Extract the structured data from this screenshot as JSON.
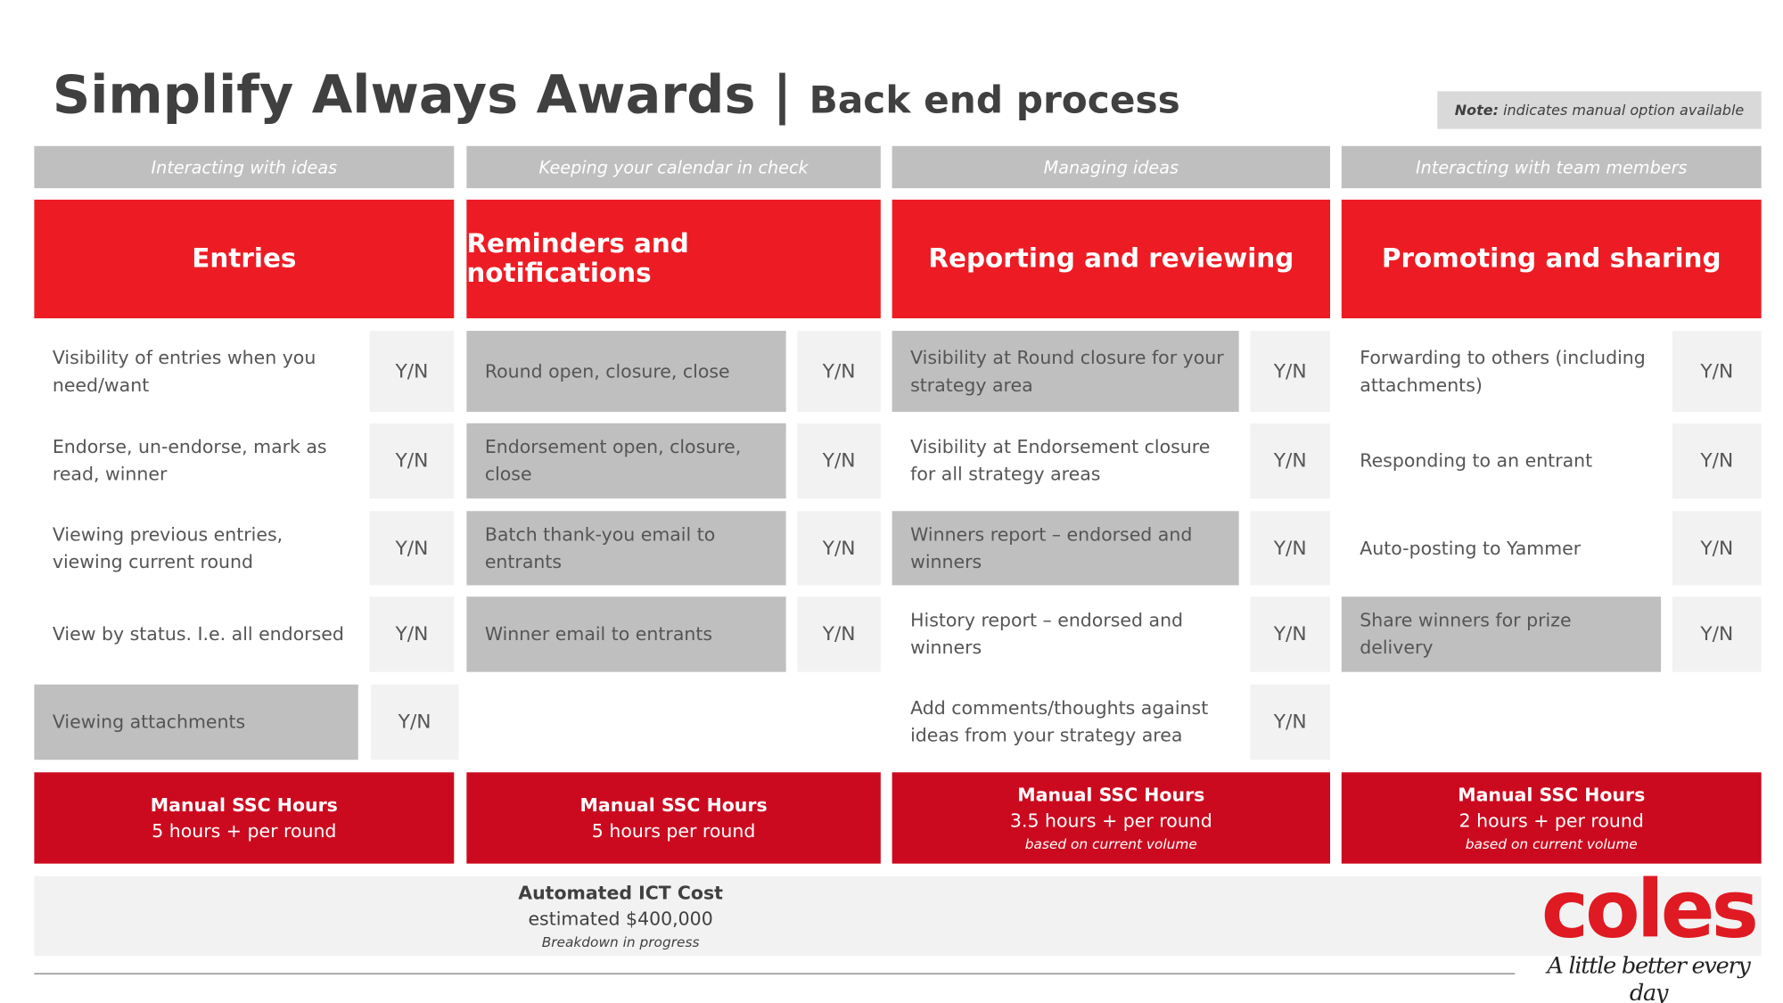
{
  "header": {
    "title": "Simplify Always Awards",
    "divider": "|",
    "subtitle": "Back end process",
    "note": {
      "label": "Note:",
      "text": "indicates manual option available"
    }
  },
  "columns": [
    {
      "category": "Interacting with ideas",
      "heading": "Entries",
      "rows": [
        {
          "text": "Visibility  of entries when you need/want",
          "option": "Y/N",
          "manual": false
        },
        {
          "text": "Endorse, un-endorse, mark as read, winner",
          "option": "Y/N",
          "manual": false
        },
        {
          "text": "Viewing previous entries, viewing current round",
          "option": "Y/N",
          "manual": false
        },
        {
          "text": "View by status. I.e. all endorsed",
          "option": "Y/N",
          "manual": false
        },
        {
          "text": "Viewing attachments",
          "option": "Y/N",
          "manual": true
        }
      ],
      "footer": {
        "title": "Manual SSC Hours",
        "hours": "5 hours + per round"
      }
    },
    {
      "category": "Keeping your  calendar in check",
      "heading": "Reminders and  notifications",
      "rows": [
        {
          "text": "Round open, closure, close",
          "option": "Y/N",
          "manual": true
        },
        {
          "text": "Endorsement open, closure, close",
          "option": "Y/N",
          "manual": true
        },
        {
          "text": "Batch thank-you email to entrants",
          "option": "Y/N",
          "manual": true
        },
        {
          "text": "Winner email to entrants",
          "option": "Y/N",
          "manual": true
        }
      ],
      "footer": {
        "title": "Manual SSC Hours",
        "hours": "5 hours per round"
      }
    },
    {
      "category": "Managing ideas",
      "heading": "Reporting and reviewing",
      "rows": [
        {
          "text": "Visibility at Round closure for your strategy area",
          "option": "Y/N",
          "manual": true
        },
        {
          "text": "Visibility at  Endorsement closure for all strategy areas",
          "option": "Y/N",
          "manual": false
        },
        {
          "text": "Winners report – endorsed and winners",
          "option": "Y/N",
          "manual": true
        },
        {
          "text": "History report – endorsed and winners",
          "option": "Y/N",
          "manual": false
        },
        {
          "text": "Add comments/thoughts against ideas from your strategy area",
          "option": "Y/N",
          "manual": false
        }
      ],
      "footer": {
        "title": "Manual SSC Hours",
        "hours": "3.5 hours + per round",
        "note": "based on current volume"
      }
    },
    {
      "category": "Interacting with team members",
      "heading": "Promoting and sharing",
      "rows": [
        {
          "text": "Forwarding to others (including attachments)",
          "option": "Y/N",
          "manual": false
        },
        {
          "text": "Responding to an entrant",
          "option": "Y/N",
          "manual": false
        },
        {
          "text": "Auto-posting to Yammer",
          "option": "Y/N",
          "manual": false
        },
        {
          "text": "Share winners  for prize delivery",
          "option": "Y/N",
          "manual": true
        }
      ],
      "footer": {
        "title": "Manual SSC Hours",
        "hours": "2 hours + per round",
        "note": "based on current volume"
      }
    }
  ],
  "cost": {
    "title": "Automated ICT Cost",
    "amount": "estimated $400,000",
    "note": "Breakdown in progress"
  },
  "logo": {
    "brand": "coles",
    "tagline": "A little better every day"
  }
}
